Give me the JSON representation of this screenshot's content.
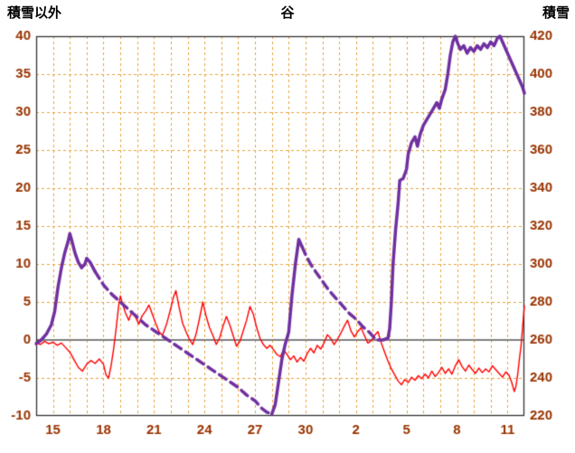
{
  "header": {
    "left_axis_title": "積雪以外",
    "chart_title": "谷",
    "right_axis_title": "積雪"
  },
  "colors": {
    "background": "#FFFFFF",
    "red_series": "#FF0000",
    "purple_series": "#7030A0",
    "grid": "#E8A33D",
    "zero_line": "#7F7F7F",
    "frame": "#333333",
    "tick_text": "#993300",
    "header_text": "#000000"
  },
  "chart_data": {
    "type": "line",
    "title": "谷",
    "legend": "none",
    "left_axis": {
      "label": "積雪以外",
      "min": -10,
      "max": 40,
      "step": 5,
      "tick_labels": [
        "-10",
        "-5",
        "0",
        "5",
        "10",
        "15",
        "20",
        "25",
        "30",
        "35",
        "40"
      ]
    },
    "right_axis": {
      "label": "積雪",
      "min": 220,
      "max": 420,
      "step": 20,
      "tick_labels": [
        "220",
        "240",
        "260",
        "280",
        "300",
        "320",
        "340",
        "360",
        "380",
        "400",
        "420"
      ]
    },
    "x_axis": {
      "domain": [
        0,
        29
      ],
      "unit": "day (0 = day 14 of month)",
      "tick_positions": [
        1,
        4,
        7,
        10,
        13,
        16,
        19,
        22,
        25,
        28
      ],
      "tick_labels": [
        "15",
        "18",
        "21",
        "24",
        "27",
        "30",
        "2",
        "5",
        "8",
        "11"
      ],
      "grid_interval": 1
    },
    "grid": {
      "vertical": "dashed, daily",
      "horizontal": "dashed, every 5 left-axis units",
      "zero_line": "solid gray at left-axis 0 (right-axis 260)"
    },
    "series": [
      {
        "name": "積雪以外",
        "axis": "left",
        "color": "#FF0000",
        "width": 1.4,
        "style": "solid",
        "points": [
          [
            0,
            -0.3
          ],
          [
            0.25,
            -0.6
          ],
          [
            0.5,
            -0.2
          ],
          [
            0.75,
            -0.5
          ],
          [
            1.0,
            -0.3
          ],
          [
            1.25,
            -0.7
          ],
          [
            1.5,
            -0.4
          ],
          [
            1.75,
            -1.0
          ],
          [
            2.0,
            -1.6
          ],
          [
            2.25,
            -2.6
          ],
          [
            2.5,
            -3.6
          ],
          [
            2.75,
            -4.1
          ],
          [
            3.0,
            -3.2
          ],
          [
            3.25,
            -2.7
          ],
          [
            3.5,
            -3.1
          ],
          [
            3.75,
            -2.5
          ],
          [
            4.0,
            -3.2
          ],
          [
            4.15,
            -4.6
          ],
          [
            4.3,
            -5.0
          ],
          [
            4.45,
            -3.4
          ],
          [
            4.6,
            -1.2
          ],
          [
            4.75,
            1.5
          ],
          [
            4.9,
            4.5
          ],
          [
            5.0,
            5.8
          ],
          [
            5.15,
            4.6
          ],
          [
            5.3,
            3.6
          ],
          [
            5.5,
            2.6
          ],
          [
            5.7,
            3.8
          ],
          [
            5.9,
            3.0
          ],
          [
            6.1,
            2.1
          ],
          [
            6.3,
            3.2
          ],
          [
            6.5,
            3.8
          ],
          [
            6.7,
            4.6
          ],
          [
            6.9,
            3.4
          ],
          [
            7.1,
            2.2
          ],
          [
            7.3,
            1.1
          ],
          [
            7.5,
            0.6
          ],
          [
            7.75,
            2.1
          ],
          [
            8.0,
            4.2
          ],
          [
            8.15,
            5.6
          ],
          [
            8.3,
            6.5
          ],
          [
            8.5,
            4.2
          ],
          [
            8.7,
            2.2
          ],
          [
            8.9,
            1.1
          ],
          [
            9.1,
            0.1
          ],
          [
            9.3,
            -0.6
          ],
          [
            9.5,
            0.8
          ],
          [
            9.7,
            2.8
          ],
          [
            9.9,
            5.0
          ],
          [
            10.1,
            3.1
          ],
          [
            10.3,
            1.6
          ],
          [
            10.5,
            0.6
          ],
          [
            10.7,
            -0.6
          ],
          [
            10.9,
            0.3
          ],
          [
            11.1,
            1.8
          ],
          [
            11.3,
            3.1
          ],
          [
            11.5,
            2.0
          ],
          [
            11.7,
            0.6
          ],
          [
            11.9,
            -0.8
          ],
          [
            12.1,
            -0.2
          ],
          [
            12.3,
            1.2
          ],
          [
            12.5,
            2.6
          ],
          [
            12.7,
            4.4
          ],
          [
            12.9,
            3.4
          ],
          [
            13.1,
            1.6
          ],
          [
            13.3,
            0.2
          ],
          [
            13.5,
            -0.6
          ],
          [
            13.7,
            -1.1
          ],
          [
            13.9,
            -0.7
          ],
          [
            14.1,
            -1.3
          ],
          [
            14.3,
            -1.9
          ],
          [
            14.5,
            -2.2
          ],
          [
            14.7,
            -1.3
          ],
          [
            14.9,
            -1.9
          ],
          [
            15.1,
            -2.6
          ],
          [
            15.3,
            -2.1
          ],
          [
            15.5,
            -2.9
          ],
          [
            15.7,
            -2.3
          ],
          [
            15.9,
            -2.8
          ],
          [
            16.1,
            -1.8
          ],
          [
            16.3,
            -1.1
          ],
          [
            16.5,
            -1.7
          ],
          [
            16.7,
            -0.7
          ],
          [
            16.9,
            -1.2
          ],
          [
            17.1,
            -0.4
          ],
          [
            17.3,
            0.7
          ],
          [
            17.5,
            0.2
          ],
          [
            17.7,
            -0.6
          ],
          [
            17.9,
            0.1
          ],
          [
            18.1,
            0.9
          ],
          [
            18.3,
            1.8
          ],
          [
            18.5,
            2.6
          ],
          [
            18.7,
            1.2
          ],
          [
            18.9,
            0.4
          ],
          [
            19.1,
            1.1
          ],
          [
            19.3,
            1.6
          ],
          [
            19.5,
            0.6
          ],
          [
            19.7,
            -0.4
          ],
          [
            19.9,
            -0.1
          ],
          [
            20.1,
            0.6
          ],
          [
            20.3,
            1.1
          ],
          [
            20.5,
            -0.4
          ],
          [
            20.7,
            -1.6
          ],
          [
            20.9,
            -2.8
          ],
          [
            21.1,
            -3.8
          ],
          [
            21.3,
            -4.6
          ],
          [
            21.5,
            -5.4
          ],
          [
            21.7,
            -5.9
          ],
          [
            21.9,
            -5.2
          ],
          [
            22.1,
            -5.6
          ],
          [
            22.3,
            -4.9
          ],
          [
            22.5,
            -5.3
          ],
          [
            22.7,
            -4.7
          ],
          [
            22.9,
            -5.1
          ],
          [
            23.1,
            -4.5
          ],
          [
            23.3,
            -5.0
          ],
          [
            23.5,
            -4.1
          ],
          [
            23.7,
            -4.8
          ],
          [
            23.9,
            -4.3
          ],
          [
            24.1,
            -3.6
          ],
          [
            24.3,
            -4.4
          ],
          [
            24.5,
            -3.8
          ],
          [
            24.7,
            -4.5
          ],
          [
            24.9,
            -3.4
          ],
          [
            25.1,
            -2.6
          ],
          [
            25.3,
            -3.5
          ],
          [
            25.5,
            -4.1
          ],
          [
            25.7,
            -3.3
          ],
          [
            25.9,
            -3.9
          ],
          [
            26.1,
            -4.4
          ],
          [
            26.3,
            -3.7
          ],
          [
            26.5,
            -4.3
          ],
          [
            26.7,
            -3.8
          ],
          [
            26.9,
            -4.2
          ],
          [
            27.1,
            -3.4
          ],
          [
            27.3,
            -3.9
          ],
          [
            27.5,
            -4.4
          ],
          [
            27.7,
            -4.9
          ],
          [
            27.9,
            -4.2
          ],
          [
            28.1,
            -4.7
          ],
          [
            28.25,
            -5.6
          ],
          [
            28.4,
            -6.8
          ],
          [
            28.5,
            -6.1
          ],
          [
            28.6,
            -4.6
          ],
          [
            28.7,
            -2.6
          ],
          [
            28.8,
            -0.8
          ],
          [
            28.9,
            1.8
          ],
          [
            29.0,
            4.5
          ]
        ]
      },
      {
        "name": "積雪",
        "axis": "right",
        "color": "#7030A0",
        "width": 3.5,
        "segments": [
          {
            "style": "solid",
            "points": [
              [
                0,
                258
              ],
              [
                0.3,
                260
              ],
              [
                0.6,
                263
              ],
              [
                0.9,
                268
              ],
              [
                1.1,
                275
              ],
              [
                1.3,
                288
              ],
              [
                1.5,
                298
              ],
              [
                1.7,
                306
              ],
              [
                1.9,
                312
              ],
              [
                2.0,
                316
              ],
              [
                2.1,
                313
              ],
              [
                2.3,
                306
              ],
              [
                2.5,
                301
              ],
              [
                2.7,
                298
              ],
              [
                2.9,
                300
              ],
              [
                3.0,
                303
              ],
              [
                3.2,
                301
              ],
              [
                3.5,
                296
              ]
            ]
          },
          {
            "style": "dashed",
            "points": [
              [
                3.5,
                296
              ],
              [
                4.0,
                289
              ],
              [
                4.5,
                284
              ],
              [
                5.0,
                280
              ],
              [
                5.5,
                276
              ],
              [
                6.0,
                272
              ],
              [
                6.5,
                268
              ],
              [
                7.0,
                265
              ],
              [
                7.5,
                262
              ],
              [
                8.0,
                259
              ],
              [
                8.5,
                256
              ],
              [
                9.0,
                253
              ],
              [
                9.5,
                250
              ],
              [
                10.0,
                247
              ],
              [
                10.5,
                244
              ],
              [
                11.0,
                241
              ],
              [
                11.5,
                238
              ],
              [
                12.0,
                235
              ],
              [
                12.5,
                231
              ],
              [
                13.0,
                228
              ],
              [
                13.4,
                224
              ],
              [
                13.7,
                222
              ],
              [
                14.0,
                221
              ]
            ]
          },
          {
            "style": "solid",
            "points": [
              [
                14.0,
                221
              ],
              [
                14.2,
                226
              ],
              [
                14.4,
                238
              ],
              [
                14.6,
                250
              ],
              [
                14.8,
                258
              ],
              [
                15.0,
                264
              ],
              [
                15.2,
                284
              ],
              [
                15.4,
                300
              ],
              [
                15.6,
                313
              ],
              [
                15.8,
                309
              ]
            ]
          },
          {
            "style": "dashed",
            "points": [
              [
                15.8,
                309
              ],
              [
                16.0,
                305
              ],
              [
                16.3,
                300
              ],
              [
                16.6,
                296
              ],
              [
                17.0,
                291
              ],
              [
                17.4,
                286
              ],
              [
                17.8,
                282
              ],
              [
                18.2,
                278
              ],
              [
                18.6,
                274
              ],
              [
                19.0,
                271
              ],
              [
                19.4,
                267
              ],
              [
                19.8,
                264
              ],
              [
                20.1,
                261
              ],
              [
                20.3,
                260
              ]
            ]
          },
          {
            "style": "solid",
            "points": [
              [
                20.3,
                260
              ],
              [
                20.6,
                260
              ],
              [
                20.9,
                261
              ],
              [
                21.0,
                266
              ],
              [
                21.1,
                280
              ],
              [
                21.2,
                300
              ],
              [
                21.35,
                318
              ],
              [
                21.5,
                332
              ],
              [
                21.6,
                344
              ],
              [
                21.8,
                345
              ],
              [
                22.0,
                350
              ],
              [
                22.1,
                358
              ],
              [
                22.3,
                364
              ],
              [
                22.5,
                367
              ],
              [
                22.65,
                362
              ],
              [
                22.8,
                368
              ],
              [
                23.0,
                373
              ],
              [
                23.2,
                376
              ],
              [
                23.4,
                379
              ],
              [
                23.6,
                382
              ],
              [
                23.8,
                385
              ],
              [
                23.95,
                382
              ],
              [
                24.1,
                387
              ],
              [
                24.3,
                392
              ],
              [
                24.45,
                400
              ],
              [
                24.6,
                410
              ],
              [
                24.75,
                417
              ],
              [
                24.9,
                420
              ],
              [
                25.05,
                416
              ],
              [
                25.2,
                413
              ],
              [
                25.4,
                415
              ],
              [
                25.6,
                411
              ],
              [
                25.8,
                414
              ],
              [
                26.0,
                412
              ],
              [
                26.2,
                415
              ],
              [
                26.4,
                413
              ],
              [
                26.6,
                416
              ],
              [
                26.8,
                414
              ],
              [
                27.0,
                417
              ],
              [
                27.2,
                415
              ],
              [
                27.4,
                419
              ],
              [
                27.55,
                420
              ],
              [
                27.7,
                417
              ],
              [
                27.9,
                413
              ],
              [
                28.1,
                409
              ],
              [
                28.3,
                405
              ],
              [
                28.5,
                401
              ],
              [
                28.7,
                397
              ],
              [
                28.9,
                393
              ],
              [
                29.0,
                390
              ]
            ]
          }
        ]
      }
    ]
  }
}
